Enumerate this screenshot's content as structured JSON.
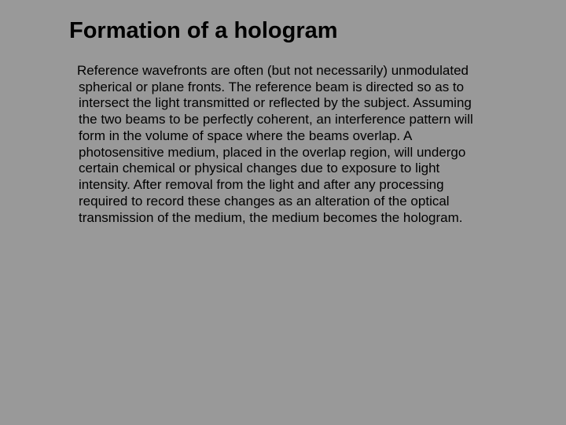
{
  "slide": {
    "title": "Formation of a hologram",
    "body": " Reference wavefronts are often (but not necessarily) unmodulated spherical or plane fronts. The reference beam is directed so as to intersect the light transmitted or reflected by the subject. Assuming the two beams to be perfectly coherent, an interference pattern will form in the volume of space where the beams overlap. A photosensitive medium, placed in the overlap region, will undergo certain chemical or physical changes due to exposure to light intensity. After removal from the light and after any processing required to record these changes as an alteration of the optical transmission of the medium, the medium becomes the hologram.",
    "background_color": "#999999",
    "title_color": "#000000",
    "title_fontsize": 29,
    "body_color": "#000000",
    "body_fontsize": 17,
    "font_family": "Arial"
  }
}
